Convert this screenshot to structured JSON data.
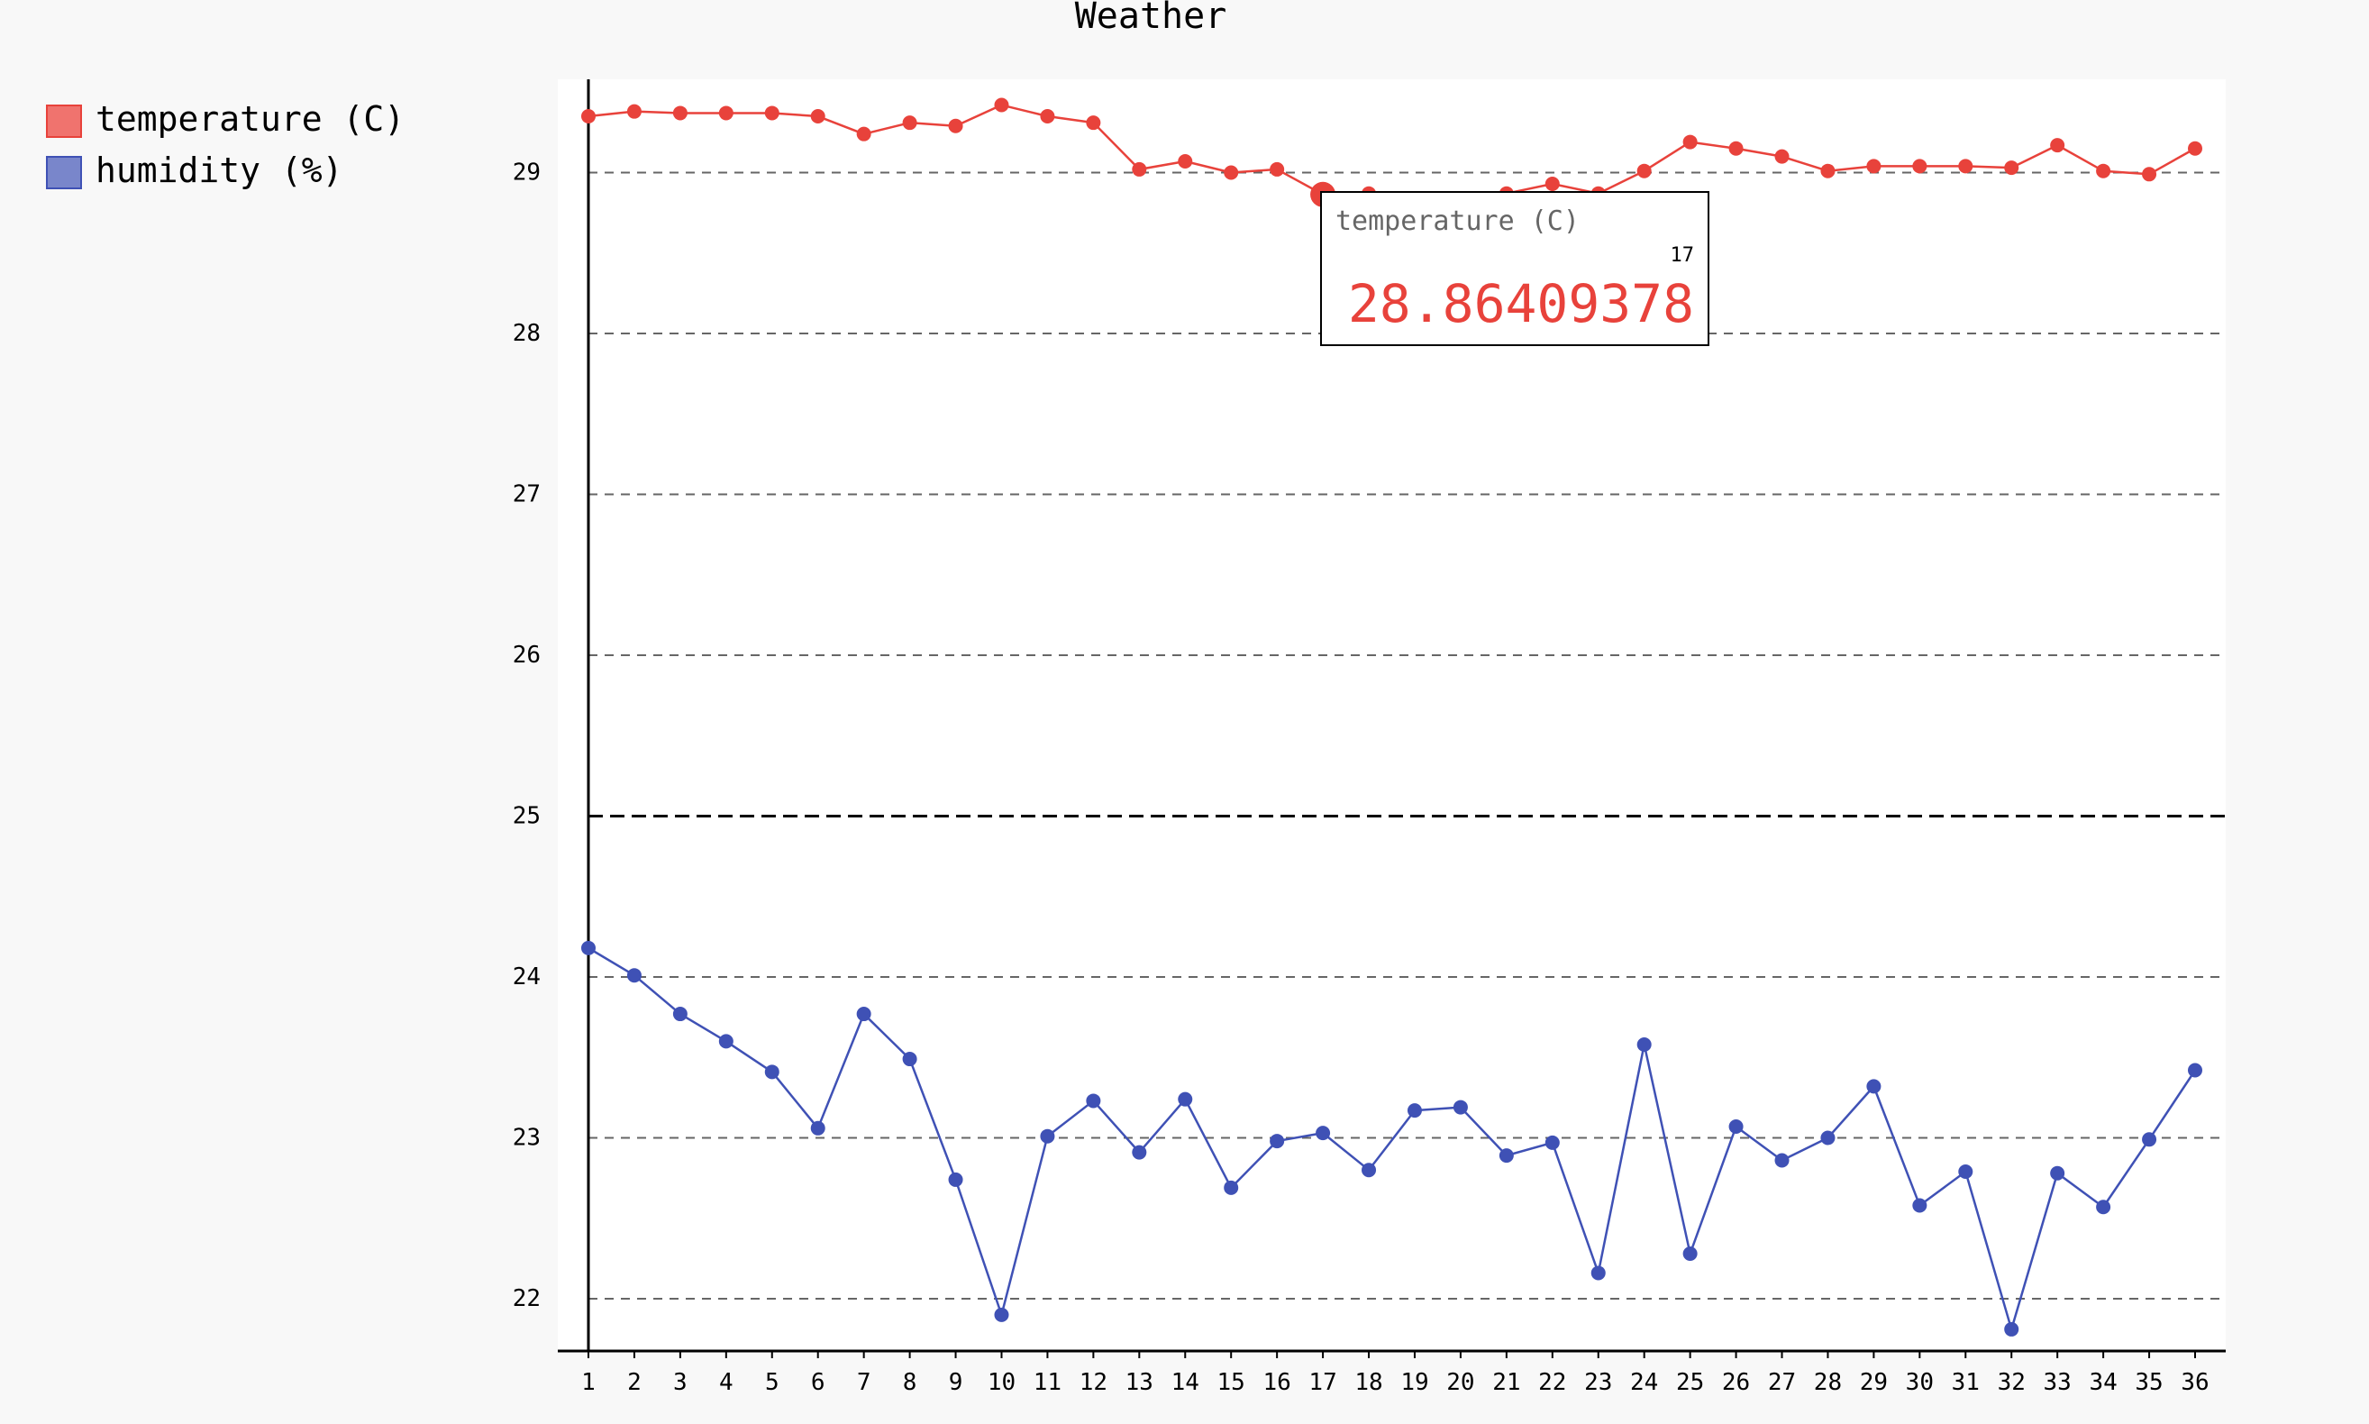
{
  "chart_data": {
    "type": "line",
    "title": "Weather",
    "xlabel": "",
    "ylabel": "",
    "x": [
      1,
      2,
      3,
      4,
      5,
      6,
      7,
      8,
      9,
      10,
      11,
      12,
      13,
      14,
      15,
      16,
      17,
      18,
      19,
      20,
      21,
      22,
      23,
      24,
      25,
      26,
      27,
      28,
      29,
      30,
      31,
      32,
      33,
      34,
      35,
      36
    ],
    "x_labels": [
      "1",
      "2",
      "3",
      "4",
      "5",
      "6",
      "7",
      "8",
      "9",
      "10",
      "11",
      "12",
      "13",
      "14",
      "15",
      "16",
      "17",
      "18",
      "19",
      "20",
      "21",
      "22",
      "23",
      "24",
      "25",
      "26",
      "27",
      "28",
      "29",
      "30",
      "31",
      "32",
      "33",
      "34",
      "35",
      "36"
    ],
    "ylim": [
      21.7,
      29.57
    ],
    "yticks": [
      22,
      23,
      24,
      25,
      26,
      27,
      28,
      29
    ],
    "ytick_labels": [
      "22",
      "23",
      "24",
      "25",
      "26",
      "27",
      "28",
      "29"
    ],
    "major_ytick": 25,
    "grid": true,
    "legend_position": "top-left",
    "series": [
      {
        "name": "temperature (C)",
        "color": "#e8423b",
        "legend_color": "#f0736e",
        "values": [
          29.35,
          29.38,
          29.37,
          29.37,
          29.37,
          29.35,
          29.24,
          29.31,
          29.29,
          29.42,
          29.35,
          29.31,
          29.02,
          29.07,
          29.0,
          29.02,
          28.86409378,
          28.87,
          28.8,
          28.81,
          28.87,
          28.93,
          28.87,
          29.01,
          29.19,
          29.15,
          29.1,
          29.01,
          29.04,
          29.04,
          29.04,
          29.03,
          29.17,
          29.01,
          28.99,
          29.15
        ]
      },
      {
        "name": "humidity (%)",
        "color": "#3f51b5",
        "legend_color": "#7986cb",
        "values": [
          24.18,
          24.01,
          23.77,
          23.6,
          23.41,
          23.06,
          23.77,
          23.49,
          22.74,
          21.9,
          23.01,
          23.23,
          22.91,
          23.24,
          22.69,
          22.98,
          23.03,
          22.8,
          23.17,
          23.19,
          22.89,
          22.97,
          22.16,
          23.58,
          22.28,
          23.07,
          22.86,
          23.0,
          23.32,
          22.58,
          22.79,
          21.81,
          22.78,
          22.57,
          22.99,
          23.42
        ]
      }
    ],
    "tooltip": {
      "series_label": "temperature (C)",
      "x_label": "17",
      "value": "28.86409378",
      "point_index": 16
    }
  }
}
